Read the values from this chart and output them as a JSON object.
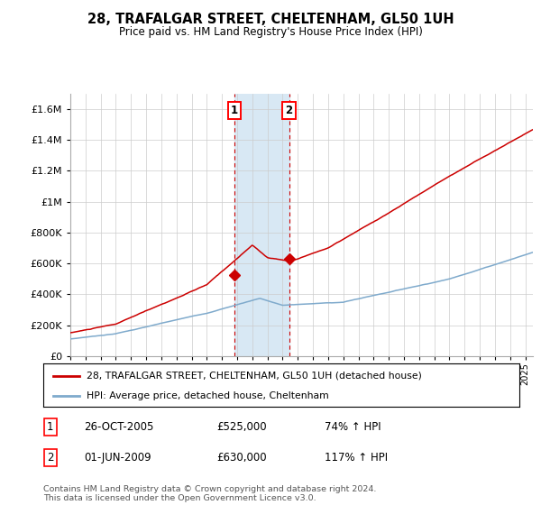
{
  "title": "28, TRAFALGAR STREET, CHELTENHAM, GL50 1UH",
  "subtitle": "Price paid vs. HM Land Registry's House Price Index (HPI)",
  "ylim": [
    0,
    1700000
  ],
  "yticks": [
    0,
    200000,
    400000,
    600000,
    800000,
    1000000,
    1200000,
    1400000,
    1600000
  ],
  "ytick_labels": [
    "£0",
    "£200K",
    "£400K",
    "£600K",
    "£800K",
    "£1M",
    "£1.2M",
    "£1.4M",
    "£1.6M"
  ],
  "hpi_color": "#7faacc",
  "price_color": "#cc0000",
  "sale1_date": "26-OCT-2005",
  "sale1_price": 525000,
  "sale1_pct": "74%",
  "sale2_date": "01-JUN-2009",
  "sale2_price": 630000,
  "sale2_pct": "117%",
  "legend_label1": "28, TRAFALGAR STREET, CHELTENHAM, GL50 1UH (detached house)",
  "legend_label2": "HPI: Average price, detached house, Cheltenham",
  "footnote": "Contains HM Land Registry data © Crown copyright and database right 2024.\nThis data is licensed under the Open Government Licence v3.0.",
  "highlight_color": "#d8e8f4",
  "sale1_x": 2005.82,
  "sale2_x": 2009.42,
  "xmin": 1995,
  "xmax": 2025.5,
  "fig_width": 6.0,
  "fig_height": 5.6,
  "dpi": 100
}
